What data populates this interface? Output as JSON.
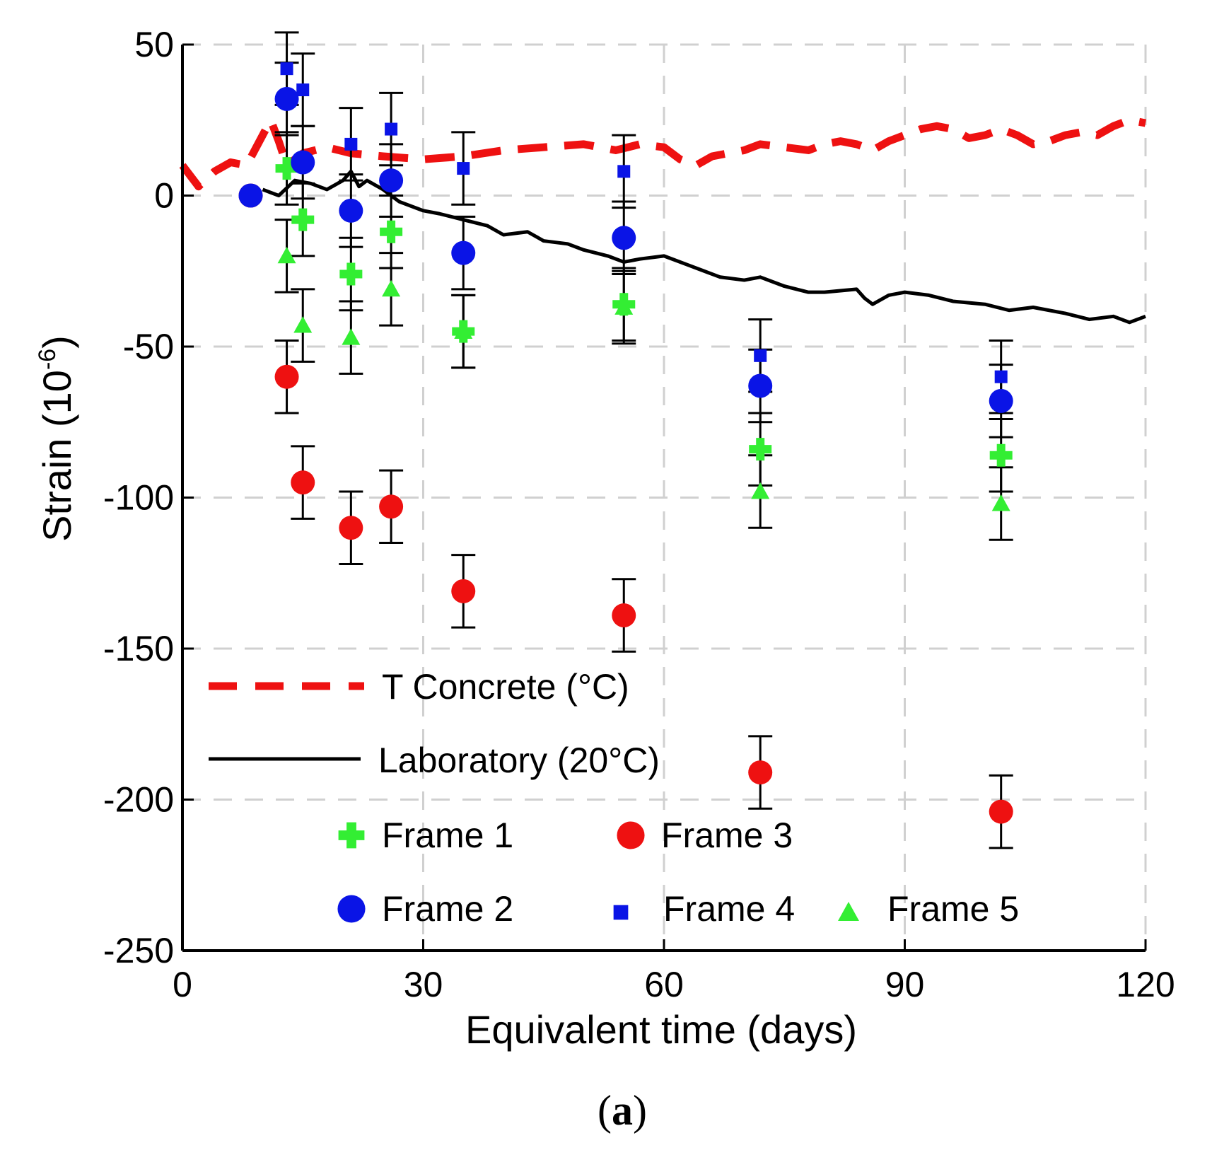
{
  "chart_data": {
    "type": "scatter",
    "caption_open": "(",
    "caption_letter": "a",
    "caption_close": ")",
    "xlabel": "Equivalent time (days)",
    "ylabel_base": "Strain (10",
    "ylabel_exp": "-6",
    "ylabel_close": ")",
    "xlim": [
      0,
      120
    ],
    "ylim": [
      -250,
      50
    ],
    "xticks": [
      0,
      30,
      60,
      90,
      120
    ],
    "yticks": [
      50,
      0,
      -50,
      -100,
      -150,
      -200,
      -250
    ],
    "grid": true,
    "legend_position": "bottom-left (inside plot)",
    "colors": {
      "frame_green": "#33ee33",
      "frame_blue": "#0a14e6",
      "frame_red": "#ee1111",
      "t_concrete": "#ee1111",
      "laboratory": "#000000",
      "grid": "#d0d0d0"
    },
    "lines": [
      {
        "name": "T Concrete (°C)",
        "style": "dashed",
        "color": "#ee1111",
        "x": [
          0,
          2,
          4,
          6,
          8,
          10,
          11,
          12,
          13,
          15,
          18,
          21,
          25,
          30,
          35,
          40,
          45,
          50,
          54,
          57,
          60,
          62,
          64,
          66,
          68,
          70,
          72,
          75,
          78,
          80,
          82,
          84,
          86,
          88,
          90,
          92,
          94,
          96,
          98,
          100,
          102,
          104,
          106,
          108,
          110,
          112,
          114,
          116,
          118,
          120
        ],
        "values": [
          10,
          3,
          8,
          11,
          10,
          20,
          25,
          18,
          10,
          14,
          16,
          14,
          13,
          12,
          13,
          15,
          16,
          17,
          15,
          17,
          16,
          12,
          10,
          13,
          14,
          15,
          17,
          16,
          15,
          17,
          18,
          17,
          15,
          18,
          20,
          22,
          23,
          22,
          19,
          20,
          22,
          20,
          17,
          18,
          20,
          21,
          20,
          23,
          25,
          24
        ]
      },
      {
        "name": "Laboratory (20°C)",
        "style": "solid",
        "color": "#000000",
        "x": [
          10,
          12,
          14,
          16,
          18,
          20,
          21,
          22,
          23,
          25,
          27,
          30,
          32,
          35,
          38,
          40,
          43,
          45,
          48,
          50,
          53,
          55,
          57,
          60,
          63,
          65,
          67,
          70,
          72,
          75,
          78,
          80,
          84,
          85,
          86,
          88,
          90,
          93,
          96,
          100,
          103,
          106,
          110,
          113,
          116,
          118,
          120
        ],
        "values": [
          2,
          0,
          5,
          4,
          2,
          5,
          8,
          3,
          5,
          2,
          -2,
          -5,
          -6,
          -8,
          -10,
          -13,
          -12,
          -15,
          -16,
          -18,
          -20,
          -22,
          -21,
          -20,
          -23,
          -25,
          -27,
          -28,
          -27,
          -30,
          -32,
          -32,
          -31,
          -34,
          -36,
          -33,
          -32,
          -33,
          -35,
          -36,
          -38,
          -37,
          -39,
          -41,
          -40,
          -42,
          -40
        ]
      }
    ],
    "series": [
      {
        "name": "Frame 1",
        "marker": "plus",
        "color": "#33ee33",
        "x": [
          13,
          15,
          21,
          26,
          35,
          55,
          72,
          102
        ],
        "values": [
          9,
          -8,
          -26,
          -12,
          -45,
          -36,
          -84,
          -86
        ],
        "err": [
          12,
          12,
          12,
          12,
          12,
          12,
          12,
          12
        ]
      },
      {
        "name": "Frame 2",
        "marker": "circle",
        "color": "#0a14e6",
        "x": [
          8.5,
          13,
          15,
          21,
          26,
          35,
          55,
          72,
          102
        ],
        "values": [
          0,
          32,
          11,
          -5,
          5,
          -19,
          -14,
          -63,
          -68
        ],
        "err": [
          null,
          12,
          12,
          12,
          12,
          12,
          12,
          12,
          12
        ]
      },
      {
        "name": "Frame 3",
        "marker": "circle",
        "color": "#ee1111",
        "x": [
          8.5,
          13,
          15,
          21,
          26,
          35,
          55,
          72,
          102
        ],
        "values": [
          0,
          -60,
          -95,
          -110,
          -103,
          -131,
          -139,
          -191,
          -204
        ],
        "err": [
          null,
          12,
          12,
          12,
          12,
          12,
          12,
          12,
          12
        ]
      },
      {
        "name": "Frame 4",
        "marker": "square",
        "color": "#0a14e6",
        "x": [
          8.5,
          13,
          15,
          21,
          26,
          35,
          55,
          72,
          102
        ],
        "values": [
          0,
          42,
          35,
          17,
          22,
          9,
          8,
          -53,
          -60
        ],
        "err": [
          null,
          12,
          12,
          12,
          12,
          12,
          12,
          12,
          12
        ]
      },
      {
        "name": "Frame 5",
        "marker": "triangle",
        "color": "#33ee33",
        "x": [
          8.5,
          13,
          15,
          21,
          26,
          35,
          55,
          72,
          102
        ],
        "values": [
          0,
          -20,
          -43,
          -47,
          -31,
          -45,
          -37,
          -98,
          -102
        ],
        "err": [
          null,
          12,
          12,
          12,
          12,
          12,
          12,
          12,
          12
        ]
      }
    ]
  }
}
